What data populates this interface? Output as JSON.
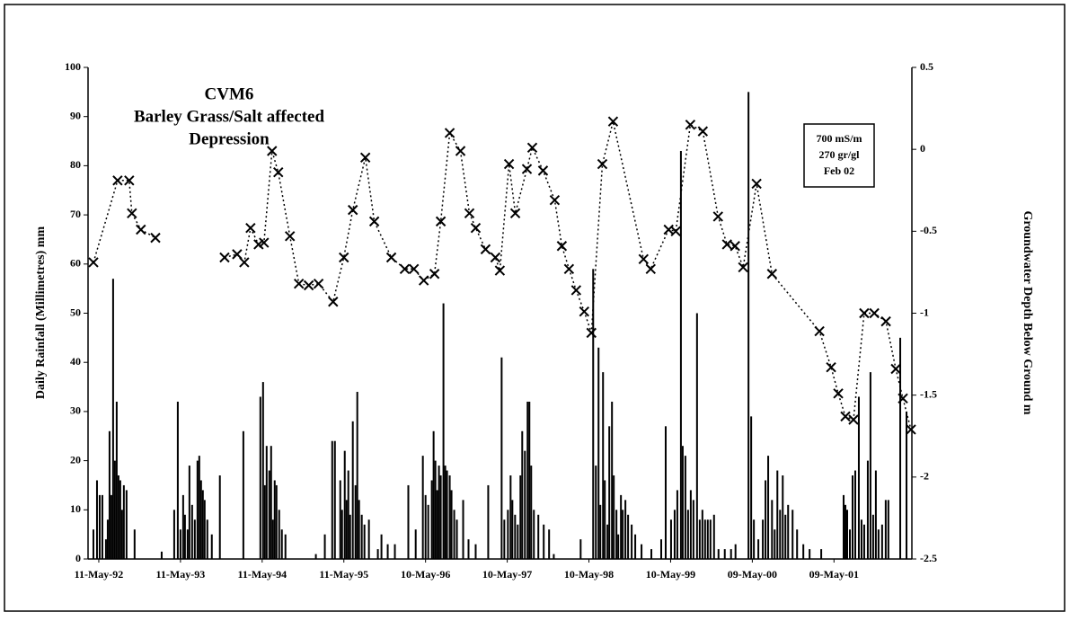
{
  "chart_data": {
    "type": "bar-line",
    "title": [
      "CVM6",
      "Barley Grass/Salt affected",
      "Depression"
    ],
    "annotations": [
      "700 mS/m",
      "270 gr/gl",
      "Feb 02"
    ],
    "y_label": "Daily Rainfall (Millimetres) mm",
    "y2_label": "Groundwater Depth Below Ground m",
    "xlim": [
      "1992-03-24",
      "2002-04-22"
    ],
    "xticks": [
      {
        "value": "1992-05-11",
        "label": "11-May-92"
      },
      {
        "value": "1993-05-11",
        "label": "11-May-93"
      },
      {
        "value": "1994-05-11",
        "label": "11-May-94"
      },
      {
        "value": "1995-05-11",
        "label": "11-May-95"
      },
      {
        "value": "1996-05-10",
        "label": "10-May-96"
      },
      {
        "value": "1997-05-10",
        "label": "10-May-97"
      },
      {
        "value": "1998-05-10",
        "label": "10-May-98"
      },
      {
        "value": "1999-05-10",
        "label": "10-May-99"
      },
      {
        "value": "2000-05-09",
        "label": "09-May-00"
      },
      {
        "value": "2001-05-09",
        "label": "09-May-01"
      }
    ],
    "ylim": [
      0,
      100
    ],
    "yticks": [
      0,
      10,
      20,
      30,
      40,
      50,
      60,
      70,
      80,
      90,
      100
    ],
    "y2lim": [
      -2.5,
      0.5
    ],
    "y2ticks": [
      -2.5,
      -2,
      -1.5,
      -1,
      -0.5,
      0,
      0.5
    ],
    "series": [
      {
        "type": "bar",
        "color": "#000000",
        "x": [
          "1992-04-17",
          "1992-05-03",
          "1992-05-15",
          "1992-05-27",
          "1992-06-12",
          "1992-06-20",
          "1992-06-28",
          "1992-07-06",
          "1992-07-14",
          "1992-07-22",
          "1992-07-30",
          "1992-08-07",
          "1992-08-15",
          "1992-08-23",
          "1992-08-31",
          "1992-09-12",
          "1992-10-18",
          "1993-02-16",
          "1993-04-13",
          "1993-04-29",
          "1993-05-11",
          "1993-05-23",
          "1993-05-31",
          "1993-06-12",
          "1993-06-20",
          "1993-07-02",
          "1993-07-14",
          "1993-07-26",
          "1993-08-03",
          "1993-08-11",
          "1993-08-19",
          "1993-08-27",
          "1993-09-08",
          "1993-09-28",
          "1993-11-03",
          "1994-02-16",
          "1994-05-03",
          "1994-05-15",
          "1994-05-23",
          "1994-05-31",
          "1994-06-12",
          "1994-06-20",
          "1994-06-28",
          "1994-07-06",
          "1994-07-14",
          "1994-07-26",
          "1994-08-07",
          "1994-08-23",
          "1995-01-06",
          "1995-02-15",
          "1995-03-20",
          "1995-04-01",
          "1995-04-25",
          "1995-05-03",
          "1995-05-15",
          "1995-05-23",
          "1995-05-31",
          "1995-06-08",
          "1995-06-20",
          "1995-07-02",
          "1995-07-10",
          "1995-07-18",
          "1995-07-30",
          "1995-08-11",
          "1995-08-31",
          "1995-10-10",
          "1995-10-26",
          "1995-11-23",
          "1995-12-25",
          "1996-02-23",
          "1996-03-27",
          "1996-04-28",
          "1996-05-10",
          "1996-05-22",
          "1996-06-07",
          "1996-06-15",
          "1996-06-23",
          "1996-07-01",
          "1996-07-09",
          "1996-07-17",
          "1996-07-29",
          "1996-08-06",
          "1996-08-14",
          "1996-08-26",
          "1996-09-03",
          "1996-09-15",
          "1996-09-27",
          "1996-10-25",
          "1996-11-18",
          "1996-12-20",
          "1997-02-14",
          "1997-04-15",
          "1997-04-27",
          "1997-05-13",
          "1997-05-25",
          "1997-06-02",
          "1997-06-14",
          "1997-06-26",
          "1997-07-08",
          "1997-07-16",
          "1997-07-28",
          "1997-08-09",
          "1997-08-17",
          "1997-08-25",
          "1997-09-06",
          "1997-09-26",
          "1997-10-20",
          "1997-11-13",
          "1997-12-04",
          "1998-04-03",
          "1998-05-29",
          "1998-06-10",
          "1998-06-22",
          "1998-06-30",
          "1998-07-12",
          "1998-07-20",
          "1998-08-01",
          "1998-08-09",
          "1998-08-21",
          "1998-08-29",
          "1998-09-10",
          "1998-09-18",
          "1998-09-30",
          "1998-10-08",
          "1998-10-20",
          "1998-11-01",
          "1998-11-17",
          "1998-12-03",
          "1998-12-31",
          "1999-02-13",
          "1999-03-29",
          "1999-04-18",
          "1999-05-12",
          "1999-05-28",
          "1999-06-09",
          "1999-06-25",
          "1999-07-03",
          "1999-07-15",
          "1999-07-27",
          "1999-08-08",
          "1999-08-20",
          "1999-09-05",
          "1999-09-17",
          "1999-09-29",
          "1999-10-11",
          "1999-10-23",
          "1999-11-04",
          "1999-11-20",
          "1999-12-10",
          "2000-01-07",
          "2000-02-04",
          "2000-02-24",
          "2000-04-22",
          "2000-05-04",
          "2000-05-16",
          "2000-06-05",
          "2000-06-25",
          "2000-07-07",
          "2000-07-19",
          "2000-08-05",
          "2000-08-17",
          "2000-08-29",
          "2000-09-10",
          "2000-09-22",
          "2000-10-04",
          "2000-10-16",
          "2000-11-05",
          "2000-11-25",
          "2000-12-23",
          "2001-01-20",
          "2001-03-13",
          "2001-06-21",
          "2001-06-29",
          "2001-07-07",
          "2001-07-19",
          "2001-07-31",
          "2001-08-12",
          "2001-08-28",
          "2001-09-09",
          "2001-09-21",
          "2001-10-07",
          "2001-10-19",
          "2001-10-31",
          "2001-11-12",
          "2001-11-24",
          "2001-12-10",
          "2001-12-26",
          "2002-01-07",
          "2002-03-01",
          "2002-03-29"
        ],
        "values": [
          6,
          16,
          13,
          13,
          4,
          8,
          26,
          13,
          57,
          20,
          32,
          17,
          16,
          10,
          15,
          14,
          6,
          1.5,
          10,
          32,
          6,
          13,
          9,
          6,
          19,
          11,
          8,
          20,
          21,
          16,
          14,
          12,
          8,
          5,
          17,
          26,
          33,
          36,
          15,
          23,
          18,
          23,
          8,
          16,
          15,
          10,
          6,
          5,
          1,
          5,
          24,
          24,
          16,
          10,
          22,
          12,
          18,
          9,
          28,
          15,
          34,
          12,
          9,
          7,
          8,
          2,
          5,
          3,
          3,
          15,
          6,
          21,
          13,
          11,
          16,
          26,
          20,
          14,
          19,
          17,
          52,
          19,
          18,
          17,
          14,
          10,
          8,
          12,
          4,
          3,
          15,
          41,
          8,
          10,
          17,
          12,
          9,
          7,
          17,
          26,
          22,
          32,
          32,
          19,
          10,
          9,
          7,
          6,
          1,
          4,
          59,
          19,
          43,
          11,
          38,
          16,
          7,
          27,
          32,
          17,
          10,
          5,
          13,
          10,
          12,
          9,
          7,
          5,
          3,
          2,
          4,
          27,
          8,
          10,
          14,
          83,
          23,
          21,
          10,
          14,
          12,
          50,
          8,
          10,
          8,
          8,
          8,
          9,
          2,
          2,
          2,
          3,
          95,
          29,
          8,
          4,
          8,
          16,
          21,
          12,
          6,
          18,
          10,
          17,
          9,
          11,
          10,
          6,
          3,
          2,
          2,
          13,
          11,
          10,
          6,
          17,
          18,
          33,
          8,
          7,
          20,
          38,
          9,
          18,
          6,
          7,
          12,
          12,
          45,
          30
        ]
      },
      {
        "type": "line",
        "axis": "y2",
        "color": "#000000",
        "x": [
          "1992-04-17",
          "1992-08-03",
          "1992-09-24",
          "1992-10-06",
          "1992-11-15",
          "1993-01-19",
          null,
          "1993-11-24",
          "1994-01-19",
          "1994-02-20",
          "1994-03-20",
          "1994-04-25",
          "1994-05-19",
          "1994-06-24",
          "1994-07-22",
          "1994-09-12",
          "1994-10-22",
          "1994-12-05",
          "1995-01-18",
          "1995-03-24",
          "1995-05-11",
          "1995-06-20",
          "1995-08-15",
          "1995-09-24",
          "1995-12-09",
          "1996-02-07",
          "1996-03-19",
          "1996-05-02",
          "1996-06-19",
          "1996-07-17",
          "1996-08-26",
          "1996-10-13",
          "1996-11-22",
          "1996-12-20",
          "1997-02-02",
          "1997-03-18",
          "1997-04-07",
          "1997-05-18",
          "1997-06-15",
          "1997-08-06",
          "1997-08-30",
          "1997-10-17",
          "1997-12-08",
          "1998-01-09",
          "1998-02-10",
          "1998-03-14",
          "1998-04-19",
          "1998-05-21",
          "1998-07-09",
          "1998-08-26",
          "1999-01-09",
          "1999-02-10",
          "1999-05-01",
          "1999-06-02",
          "1999-08-06",
          "1999-10-01",
          "1999-12-08",
          "2000-01-17",
          "2000-02-22",
          "2000-03-29",
          "2000-05-28",
          "2000-08-05",
          "2001-03-05",
          "2001-04-26",
          "2001-05-28",
          "2001-06-29",
          "2001-08-04",
          "2001-09-21",
          "2001-11-05",
          "2001-12-27",
          "2002-02-09",
          "2002-03-13",
          "2002-04-18"
        ],
        "values": [
          -0.69,
          -0.19,
          -0.19,
          -0.39,
          -0.49,
          -0.54,
          null,
          -0.66,
          -0.64,
          -0.69,
          -0.48,
          -0.58,
          -0.57,
          -0.01,
          -0.14,
          -0.53,
          -0.82,
          -0.83,
          -0.82,
          -0.93,
          -0.66,
          -0.37,
          -0.05,
          -0.44,
          -0.66,
          -0.73,
          -0.73,
          -0.8,
          -0.76,
          -0.44,
          0.1,
          -0.01,
          -0.39,
          -0.48,
          -0.61,
          -0.66,
          -0.74,
          -0.09,
          -0.39,
          -0.12,
          0.01,
          -0.13,
          -0.31,
          -0.59,
          -0.73,
          -0.86,
          -0.99,
          -1.12,
          -0.09,
          0.17,
          -0.67,
          -0.73,
          -0.49,
          -0.5,
          0.15,
          0.11,
          -0.41,
          -0.58,
          -0.59,
          -0.72,
          -0.21,
          -0.76,
          -1.11,
          -1.33,
          -1.49,
          -1.63,
          -1.65,
          -1,
          -1,
          -1.05,
          -1.34,
          -1.52,
          -1.71
        ]
      }
    ]
  }
}
